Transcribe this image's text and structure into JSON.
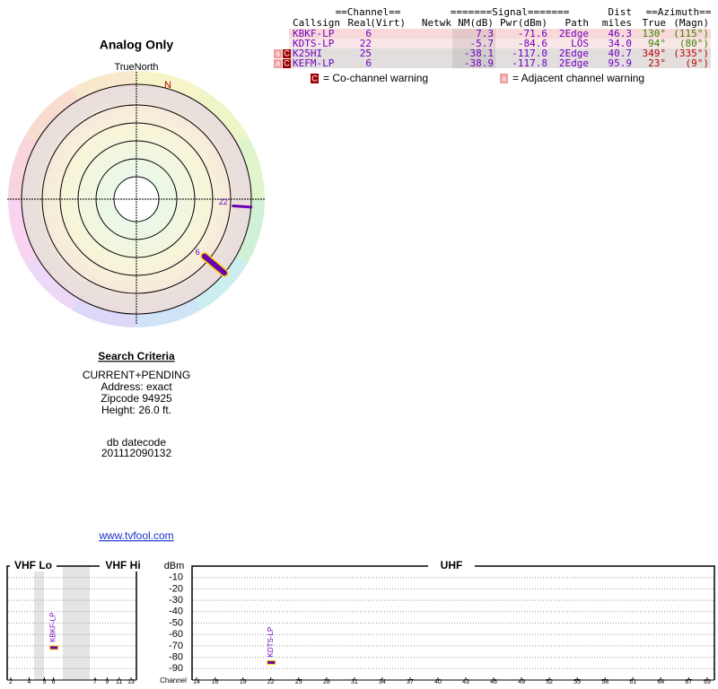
{
  "radar": {
    "title": "Analog Only",
    "north_label": "TrueNorth",
    "magnetic_label": "N",
    "markers": [
      {
        "label": "22",
        "azimuth": 94,
        "nm": -5.7
      },
      {
        "label": "6",
        "azimuth": 130,
        "nm": 7.3
      }
    ]
  },
  "table": {
    "group_headers": [
      "==Channel==",
      "=======Signal=======",
      "Dist",
      "==Azimuth=="
    ],
    "columns": [
      "Callsign",
      "Real",
      "(Virt)",
      "Netwk",
      "NM(dB)",
      "Pwr(dBm)",
      "Path",
      "miles",
      "True",
      "(Magn)"
    ],
    "rows": [
      {
        "callsign": "KBKF-LP",
        "real": "6",
        "nm": "7.3",
        "pwr": "-71.6",
        "path": "2Edge",
        "dist": "46.3",
        "true": "130°",
        "magn": "(115°)",
        "az_color": "#3c8000"
      },
      {
        "callsign": "KDTS-LP",
        "real": "22",
        "nm": "-5.7",
        "pwr": "-84.6",
        "path": "LOS",
        "dist": "34.0",
        "true": "94°",
        "magn": "(80°)",
        "az_color": "#3c8000"
      },
      {
        "callsign": "K25HI",
        "real": "25",
        "nm": "-38.1",
        "pwr": "-117.0",
        "path": "2Edge",
        "dist": "40.7",
        "true": "349°",
        "magn": "(335°)",
        "az_color": "#c00000",
        "flags": [
          "a",
          "C"
        ]
      },
      {
        "callsign": "KEFM-LP",
        "real": "6",
        "nm": "-38.9",
        "pwr": "-117.8",
        "path": "2Edge",
        "dist": "95.9",
        "true": "23°",
        "magn": "(9°)",
        "az_color": "#c00000",
        "flags": [
          "a",
          "C"
        ]
      }
    ]
  },
  "legend": {
    "co_icon": "C",
    "co_text": "= Co-channel warning",
    "adj_icon": "a",
    "adj_text": "= Adjacent channel warning"
  },
  "search": {
    "heading": "Search Criteria",
    "lines": [
      "CURRENT+PENDING",
      "Address: exact",
      "Zipcode 94925",
      "Height: 26.0 ft."
    ],
    "datecode_label": "db datecode",
    "datecode": "201112090132"
  },
  "link": "www.tvfool.com",
  "spectrum": {
    "vhf_lo": "VHF Lo",
    "vhf_hi": "VHF Hi",
    "uhf": "UHF",
    "y_label": "dBm",
    "x_label": "Channel",
    "ylim": [
      0,
      -100
    ],
    "yticks": [
      -10,
      -20,
      -30,
      -40,
      -50,
      -60,
      -70,
      -80,
      -90
    ],
    "vhf_ticks": [
      2,
      4,
      5,
      6,
      7,
      9,
      11,
      13
    ],
    "uhf_ticks": [
      14,
      16,
      19,
      22,
      25,
      28,
      31,
      34,
      37,
      40,
      43,
      46,
      49,
      52,
      55,
      58,
      61,
      64,
      67,
      69
    ],
    "bars": [
      {
        "label": "KBKF-LP",
        "channel": 6,
        "dbm": -71.6
      },
      {
        "label": "KDTS-LP",
        "channel": 22,
        "dbm": -84.6
      }
    ]
  }
}
